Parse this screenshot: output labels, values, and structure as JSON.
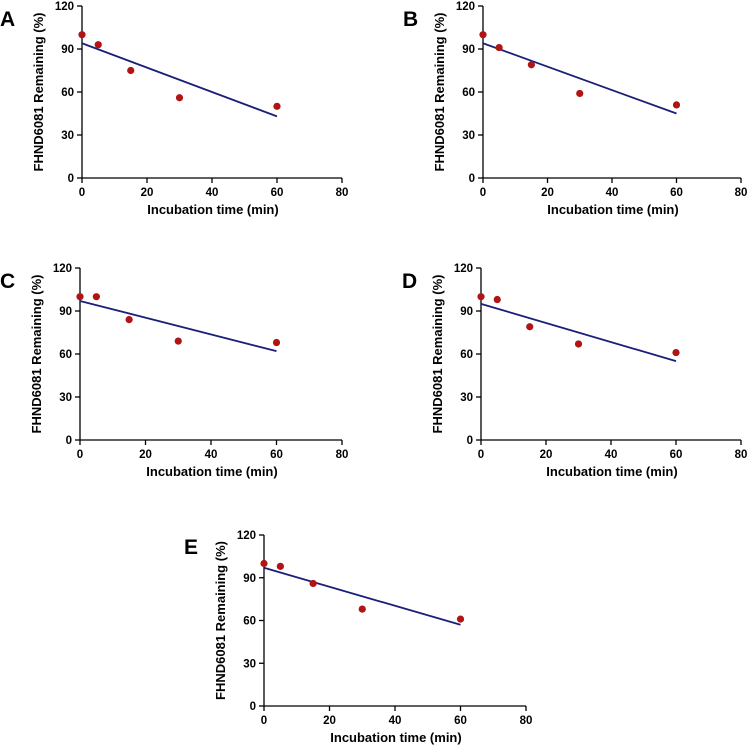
{
  "colors": {
    "point": "#B01414",
    "fit_line": "#1A1F7A",
    "axis": "#000000"
  },
  "chart_data": [
    {
      "panel": "A",
      "type": "scatter",
      "xlabel": "Incubation time (min)",
      "ylabel": "FHND6081 Remaining (%)",
      "xlim": [
        0,
        80
      ],
      "ylim": [
        0,
        120
      ],
      "xticks": [
        0,
        20,
        40,
        60,
        80
      ],
      "yticks": [
        0,
        30,
        60,
        90,
        120
      ],
      "x": [
        0,
        5,
        15,
        30,
        60
      ],
      "y": [
        100,
        93,
        75,
        56,
        50
      ],
      "fit": {
        "x": [
          0,
          60
        ],
        "y": [
          94,
          43
        ]
      }
    },
    {
      "panel": "B",
      "type": "scatter",
      "xlabel": "Incubation time (min)",
      "ylabel": "FHND6081 Remaining (%)",
      "xlim": [
        0,
        80
      ],
      "ylim": [
        0,
        120
      ],
      "xticks": [
        0,
        20,
        40,
        60,
        80
      ],
      "yticks": [
        0,
        30,
        60,
        90,
        120
      ],
      "x": [
        0,
        5,
        15,
        30,
        60
      ],
      "y": [
        100,
        91,
        79,
        59,
        51
      ],
      "fit": {
        "x": [
          0,
          60
        ],
        "y": [
          94,
          45
        ]
      }
    },
    {
      "panel": "C",
      "type": "scatter",
      "xlabel": "Incubation time (min)",
      "ylabel": "FHND6081 Remaining (%)",
      "xlim": [
        0,
        80
      ],
      "ylim": [
        0,
        120
      ],
      "xticks": [
        0,
        20,
        40,
        60,
        80
      ],
      "yticks": [
        0,
        30,
        60,
        90,
        120
      ],
      "x": [
        0,
        5,
        15,
        30,
        60
      ],
      "y": [
        100,
        100,
        84,
        69,
        68
      ],
      "fit": {
        "x": [
          0,
          60
        ],
        "y": [
          97,
          62
        ]
      }
    },
    {
      "panel": "D",
      "type": "scatter",
      "xlabel": "Incubation time (min)",
      "ylabel": "FHND6081 Remaining (%)",
      "xlim": [
        0,
        80
      ],
      "ylim": [
        0,
        120
      ],
      "xticks": [
        0,
        20,
        40,
        60,
        80
      ],
      "yticks": [
        0,
        30,
        60,
        90,
        120
      ],
      "x": [
        0,
        5,
        15,
        30,
        60
      ],
      "y": [
        100,
        98,
        79,
        67,
        61
      ],
      "fit": {
        "x": [
          0,
          60
        ],
        "y": [
          95,
          55
        ]
      }
    },
    {
      "panel": "E",
      "type": "scatter",
      "xlabel": "Incubation time (min)",
      "ylabel": "FHND6081 Remaining (%)",
      "xlim": [
        0,
        80
      ],
      "ylim": [
        0,
        120
      ],
      "xticks": [
        0,
        20,
        40,
        60,
        80
      ],
      "yticks": [
        0,
        30,
        60,
        90,
        120
      ],
      "x": [
        0,
        5,
        15,
        30,
        60
      ],
      "y": [
        100,
        98,
        86,
        68,
        61
      ],
      "fit": {
        "x": [
          0,
          60
        ],
        "y": [
          97,
          57
        ]
      }
    }
  ]
}
